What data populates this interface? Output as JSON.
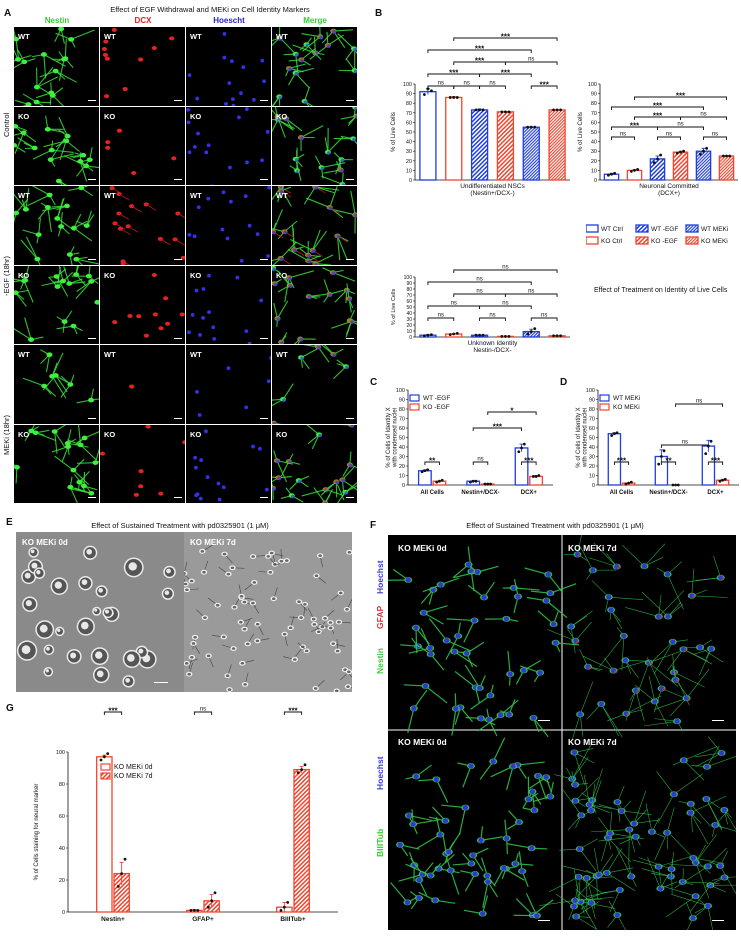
{
  "panelA": {
    "letter": "A",
    "title": "Effect of EGF Withdrawal and MEKi on Cell Identity Markers",
    "columns": [
      {
        "label": "Nestin",
        "color": "#2fd12f"
      },
      {
        "label": "DCX",
        "color": "#e02020"
      },
      {
        "label": "Hoescht",
        "color": "#2525c8"
      },
      {
        "label": "Merge",
        "color": "#2fd12f"
      }
    ],
    "groups": [
      "Control",
      "-EGF (18hr)",
      "MEKi (18hr)"
    ],
    "rows": [
      "WT",
      "KO",
      "WT",
      "KO",
      "WT",
      "KO"
    ]
  },
  "panelB": {
    "letter": "B"
  },
  "panelC": {
    "letter": "C"
  },
  "panelD": {
    "letter": "D"
  },
  "panelE": {
    "letter": "E",
    "title": "Effect of Sustained Treatment with pd0325901 (1 μM)",
    "left": "KO MEKi 0d",
    "right": "KO MEKi 7d"
  },
  "panelF": {
    "letter": "F",
    "title": "Effect of Sustained Treatment with pd0325901 (1 μM)",
    "topLeft": "KO MEKi 0d",
    "topRight": "KO MEKi 7d",
    "bottomLeft": "KO MEKi 0d",
    "bottomRight": "KO MEKi 7d",
    "side1": [
      {
        "label": "Hoechst",
        "color": "#3a3ad8"
      },
      {
        "label": "GFAP",
        "color": "#e03030"
      },
      {
        "label": "Nestin",
        "color": "#2fd12f"
      }
    ],
    "side2": [
      {
        "label": "Hoechst",
        "color": "#3a3ad8"
      },
      {
        "label": "BIIITub",
        "color": "#2fd12f"
      }
    ]
  },
  "panelG": {
    "letter": "G"
  },
  "chart_data": [
    {
      "id": "B1",
      "type": "bar",
      "ylabel": "% of Live Cells",
      "xlabel": "Undifferentiated NSCs",
      "xlabel2": "(Nestin+/DCX-)",
      "ylim": [
        0,
        100
      ],
      "yticks": [
        0,
        10,
        20,
        30,
        40,
        50,
        60,
        70,
        80,
        90,
        100
      ],
      "series": [
        {
          "name": "WT Ctrl",
          "color": "#1f3de0",
          "hatch": false,
          "value": 92,
          "err": 3,
          "points": [
            89,
            95,
            93
          ]
        },
        {
          "name": "KO Ctrl",
          "color": "#f0452e",
          "hatch": false,
          "value": 86,
          "err": 1,
          "points": [
            86,
            86,
            86
          ]
        },
        {
          "name": "WT -EGF",
          "color": "#1f3de0",
          "hatch": true,
          "value": 73,
          "err": 1,
          "points": [
            73,
            73,
            73
          ]
        },
        {
          "name": "KO -EGF",
          "color": "#f0452e",
          "hatch": true,
          "value": 71,
          "err": 0.5,
          "points": [
            71,
            71,
            71
          ]
        },
        {
          "name": "WT MEKi",
          "color": "#1f3de0",
          "hatch": true,
          "value": 55,
          "err": 0.5,
          "points": [
            55,
            55,
            55
          ]
        },
        {
          "name": "KO MEKi",
          "color": "#f0452e",
          "hatch": true,
          "value": 73,
          "err": 0.5,
          "points": [
            73,
            73,
            73
          ]
        }
      ],
      "brackets": [
        {
          "a": 0,
          "b": 1,
          "level": 0,
          "label": "ns"
        },
        {
          "a": 1,
          "b": 2,
          "level": 0,
          "label": "ns"
        },
        {
          "a": 2,
          "b": 3,
          "level": 0,
          "label": "ns"
        },
        {
          "a": 4,
          "b": 5,
          "level": 0,
          "label": "***"
        },
        {
          "a": 0,
          "b": 2,
          "level": 1,
          "label": "***"
        },
        {
          "a": 2,
          "b": 4,
          "level": 1,
          "label": "***"
        },
        {
          "a": 1,
          "b": 3,
          "level": 2,
          "label": "***"
        },
        {
          "a": 3,
          "b": 5,
          "level": 2,
          "label": "ns"
        },
        {
          "a": 0,
          "b": 4,
          "level": 3,
          "label": "***"
        },
        {
          "a": 1,
          "b": 5,
          "level": 4,
          "label": "***"
        }
      ]
    },
    {
      "id": "B2",
      "type": "bar",
      "ylabel": "% of Live Cells",
      "xlabel": "Neuronal Committed",
      "xlabel2": "(DCX+)",
      "ylim": [
        0,
        100
      ],
      "yticks": [
        0,
        10,
        20,
        30,
        40,
        50,
        60,
        70,
        80,
        90,
        100
      ],
      "series": [
        {
          "name": "WT Ctrl",
          "color": "#1f3de0",
          "hatch": false,
          "value": 6,
          "err": 1,
          "points": [
            5,
            6,
            7
          ]
        },
        {
          "name": "KO Ctrl",
          "color": "#f0452e",
          "hatch": false,
          "value": 10,
          "err": 1,
          "points": [
            9,
            10,
            11
          ]
        },
        {
          "name": "WT -EGF",
          "color": "#1f3de0",
          "hatch": true,
          "value": 22,
          "err": 3,
          "points": [
            18,
            22,
            26
          ]
        },
        {
          "name": "KO -EGF",
          "color": "#f0452e",
          "hatch": true,
          "value": 29,
          "err": 1,
          "points": [
            28,
            29,
            30
          ]
        },
        {
          "name": "WT MEKi",
          "color": "#1f3de0",
          "hatch": true,
          "value": 30,
          "err": 3,
          "points": [
            27,
            30,
            33
          ]
        },
        {
          "name": "KO MEKi",
          "color": "#f0452e",
          "hatch": true,
          "value": 25,
          "err": 0.5,
          "points": [
            25,
            25,
            25
          ]
        }
      ],
      "brackets": [
        {
          "a": 0,
          "b": 1,
          "level": 0,
          "label": "ns"
        },
        {
          "a": 2,
          "b": 3,
          "level": 0,
          "label": "ns"
        },
        {
          "a": 4,
          "b": 5,
          "level": 0,
          "label": "ns"
        },
        {
          "a": 0,
          "b": 2,
          "level": 1,
          "label": "***"
        },
        {
          "a": 2,
          "b": 4,
          "level": 1,
          "label": "ns"
        },
        {
          "a": 1,
          "b": 3,
          "level": 2,
          "label": "***"
        },
        {
          "a": 3,
          "b": 5,
          "level": 2,
          "label": "ns"
        },
        {
          "a": 0,
          "b": 4,
          "level": 3,
          "label": "***"
        },
        {
          "a": 1,
          "b": 5,
          "level": 4,
          "label": "***"
        }
      ]
    },
    {
      "id": "B3",
      "type": "bar",
      "ylabel": "% of Live Cells",
      "xlabel": "Unknown Identity",
      "xlabel2": "Nestin-/DCX-",
      "ylim": [
        0,
        100
      ],
      "yticks": [
        0,
        10,
        20,
        30,
        40,
        50,
        60,
        70,
        80,
        90,
        100
      ],
      "series": [
        {
          "name": "WT Ctrl",
          "color": "#1f3de0",
          "hatch": false,
          "value": 3,
          "err": 1,
          "points": [
            2,
            3,
            4
          ]
        },
        {
          "name": "KO Ctrl",
          "color": "#f0452e",
          "hatch": false,
          "value": 5,
          "err": 1,
          "points": [
            4,
            5,
            6
          ]
        },
        {
          "name": "WT -EGF",
          "color": "#1f3de0",
          "hatch": true,
          "value": 3,
          "err": 0.5,
          "points": [
            3,
            3,
            3
          ]
        },
        {
          "name": "KO -EGF",
          "color": "#f0452e",
          "hatch": true,
          "value": 1,
          "err": 0.5,
          "points": [
            1,
            1,
            1
          ]
        },
        {
          "name": "WT MEKi",
          "color": "#1f3de0",
          "hatch": true,
          "value": 9,
          "err": 4,
          "points": [
            5,
            9,
            14
          ]
        },
        {
          "name": "KO MEKi",
          "color": "#f0452e",
          "hatch": true,
          "value": 2,
          "err": 0.5,
          "points": [
            2,
            2,
            2
          ]
        }
      ],
      "brackets": [
        {
          "a": 0,
          "b": 1,
          "level": 0,
          "label": "ns"
        },
        {
          "a": 2,
          "b": 3,
          "level": 0,
          "label": "ns"
        },
        {
          "a": 4,
          "b": 5,
          "level": 0,
          "label": "ns"
        },
        {
          "a": 0,
          "b": 2,
          "level": 1,
          "label": "ns"
        },
        {
          "a": 2,
          "b": 4,
          "level": 1,
          "label": "ns"
        },
        {
          "a": 1,
          "b": 3,
          "level": 2,
          "label": "ns"
        },
        {
          "a": 3,
          "b": 5,
          "level": 2,
          "label": "ns"
        },
        {
          "a": 0,
          "b": 4,
          "level": 3,
          "label": "ns"
        },
        {
          "a": 1,
          "b": 5,
          "level": 4,
          "label": "ns"
        }
      ]
    },
    {
      "id": "C",
      "type": "bar",
      "ylabel": "% of Cells of Identity X",
      "ylabel2": "with condensed nuclei",
      "ylim": [
        0,
        100
      ],
      "yticks": [
        0,
        10,
        20,
        30,
        40,
        50,
        60,
        70,
        80,
        90,
        100
      ],
      "categories": [
        "All Cells",
        "Nestin+/DCX-",
        "DCX+"
      ],
      "series": [
        {
          "name": "WT -EGF",
          "color": "#1f3de0",
          "values": [
            15,
            4,
            39
          ],
          "errs": [
            1,
            0.5,
            4
          ],
          "points": [
            [
              14,
              15,
              16
            ],
            [
              3,
              4,
              4
            ],
            [
              35,
              39,
              43
            ]
          ]
        },
        {
          "name": "KO -EGF",
          "color": "#f0452e",
          "values": [
            4,
            1,
            9
          ],
          "errs": [
            0.5,
            0.3,
            1
          ],
          "points": [
            [
              3,
              4,
              5
            ],
            [
              1,
              1,
              1
            ],
            [
              9,
              9,
              10
            ]
          ]
        }
      ],
      "brackets": [
        {
          "a": [
            0,
            0
          ],
          "b": [
            0,
            1
          ],
          "level": 0,
          "label": "**"
        },
        {
          "a": [
            1,
            0
          ],
          "b": [
            1,
            1
          ],
          "level": 0,
          "label": "ns"
        },
        {
          "a": [
            2,
            0
          ],
          "b": [
            2,
            1
          ],
          "level": 0,
          "label": "***"
        },
        {
          "a": [
            1,
            0
          ],
          "b": [
            2,
            0
          ],
          "level": 1,
          "label": "***"
        },
        {
          "a": [
            1,
            1
          ],
          "b": [
            2,
            1
          ],
          "level": 2,
          "label": "*"
        }
      ]
    },
    {
      "id": "D",
      "type": "bar",
      "ylabel": "% of Cells of Identity X",
      "ylabel2": "with condensed nuclei",
      "ylim": [
        0,
        100
      ],
      "yticks": [
        0,
        10,
        20,
        30,
        40,
        50,
        60,
        70,
        80,
        90,
        100
      ],
      "categories": [
        "All Cells",
        "Nestin+/DCX-",
        "DCX+"
      ],
      "series": [
        {
          "name": "WT MEKi",
          "color": "#1f3de0",
          "values": [
            54,
            30,
            41
          ],
          "errs": [
            1,
            7,
            6
          ],
          "points": [
            [
              52,
              54,
              55
            ],
            [
              22,
              30,
              36
            ],
            [
              33,
              41,
              46
            ]
          ]
        },
        {
          "name": "KO MEKi",
          "color": "#f0452e",
          "values": [
            2,
            0,
            5
          ],
          "errs": [
            0.5,
            0,
            1
          ],
          "points": [
            [
              1,
              2,
              3
            ],
            [
              0,
              0,
              0
            ],
            [
              4,
              5,
              6
            ]
          ]
        }
      ],
      "brackets": [
        {
          "a": [
            0,
            0
          ],
          "b": [
            0,
            1
          ],
          "level": 0,
          "label": "***"
        },
        {
          "a": [
            1,
            0
          ],
          "b": [
            1,
            1
          ],
          "level": 0,
          "label": "**"
        },
        {
          "a": [
            2,
            0
          ],
          "b": [
            2,
            1
          ],
          "level": 0,
          "label": "***"
        },
        {
          "a": [
            1,
            0
          ],
          "b": [
            2,
            0
          ],
          "level": 1,
          "label": "ns"
        },
        {
          "a": [
            1,
            1
          ],
          "b": [
            2,
            1
          ],
          "level": 2,
          "label": "ns"
        }
      ]
    },
    {
      "id": "G",
      "type": "bar",
      "ylabel": "% of Cells staining for neural marker",
      "ylim": [
        0,
        100
      ],
      "yticks": [
        0,
        20,
        40,
        60,
        80,
        100
      ],
      "categories": [
        "Nestin+",
        "GFAP+",
        "BIIITub+"
      ],
      "series": [
        {
          "name": "KO MEKi 0d",
          "color": "#f0452e",
          "hatch": false,
          "values": [
            97,
            1,
            3
          ],
          "errs": [
            1,
            0.5,
            3
          ],
          "points": [
            [
              95,
              97,
              99
            ],
            [
              1,
              1,
              1
            ],
            [
              1,
              3,
              6
            ]
          ]
        },
        {
          "name": "KO MEKi 7d",
          "color": "#f0452e",
          "hatch": true,
          "values": [
            24,
            7,
            89
          ],
          "errs": [
            7,
            4,
            2
          ],
          "points": [
            [
              16,
              24,
              33
            ],
            [
              3,
              7,
              12
            ],
            [
              87,
              89,
              92
            ]
          ]
        }
      ],
      "brackets": [
        {
          "a": [
            0,
            0
          ],
          "b": [
            0,
            1
          ],
          "level": 0,
          "label": "***"
        },
        {
          "a": [
            1,
            0
          ],
          "b": [
            1,
            1
          ],
          "level": 0,
          "label": "ns"
        },
        {
          "a": [
            2,
            0
          ],
          "b": [
            2,
            1
          ],
          "level": 0,
          "label": "***"
        }
      ]
    }
  ],
  "legendB": {
    "items": [
      {
        "name": "WT Ctrl",
        "color": "#1f3de0",
        "hatch": false
      },
      {
        "name": "KO Ctrl",
        "color": "#f0452e",
        "hatch": false
      },
      {
        "name": "WT -EGF",
        "color": "#1f3de0",
        "hatch": true
      },
      {
        "name": "KO -EGF",
        "color": "#f0452e",
        "hatch": true
      },
      {
        "name": "WT MEKi",
        "color": "#1f3de0",
        "hatch": "dense"
      },
      {
        "name": "KO MEKi",
        "color": "#f0452e",
        "hatch": "dense"
      }
    ],
    "note": "Effect of Treatment on Identity of Live Cells"
  }
}
